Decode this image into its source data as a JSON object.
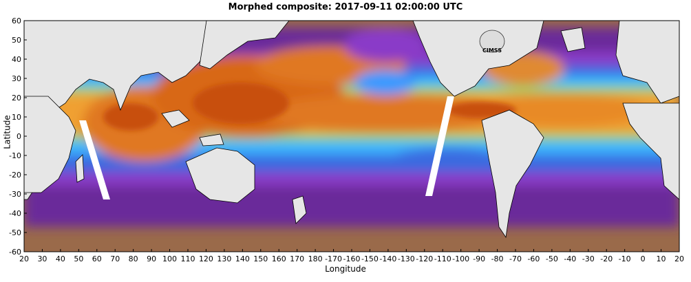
{
  "title": "Morphed composite: 2017-09-11 02:00:00 UTC",
  "xlabel": "Longitude",
  "ylabel": "Latitude",
  "logo_text": "CIMSS",
  "x_ticks": [
    "20",
    "30",
    "40",
    "50",
    "60",
    "70",
    "80",
    "90",
    "100",
    "110",
    "120",
    "130",
    "140",
    "150",
    "160",
    "170",
    "180",
    "-170",
    "-160",
    "-150",
    "-140",
    "-130",
    "-120",
    "-110",
    "-100",
    "-90",
    "-80",
    "-70",
    "-60",
    "-50",
    "-40",
    "-30",
    "-20",
    "-10",
    "0",
    "10",
    "20"
  ],
  "y_ticks": [
    "60",
    "50",
    "40",
    "30",
    "20",
    "10",
    "0",
    "-10",
    "-20",
    "-30",
    "-40",
    "-50",
    "-60"
  ],
  "colors": {
    "land": "#e6e6e6",
    "dry": "#9a6a4a",
    "purple": "#6a2a9a",
    "violet": "#8a3ac8",
    "blue": "#3a6ae0",
    "cyan": "#3ab4ff",
    "green": "#8ad870",
    "yellow": "#f0c040",
    "orange": "#e07820",
    "deep_orange": "#c85010",
    "gap": "#ffffff"
  }
}
